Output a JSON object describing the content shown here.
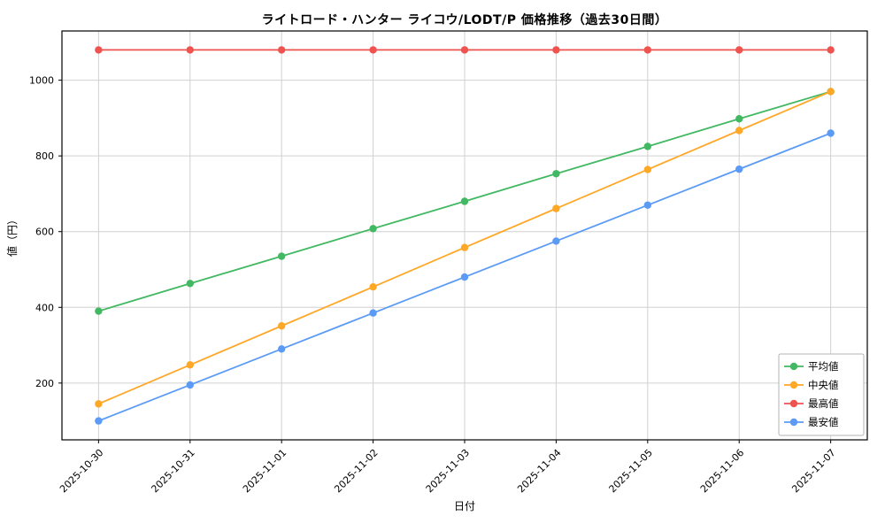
{
  "chart_data": {
    "type": "line",
    "title": "ライトロード・ハンター ライコウ/LODT/P 価格推移（過去30日間）",
    "xlabel": "日付",
    "ylabel": "値（円）",
    "x": [
      "2025-10-30",
      "2025-10-31",
      "2025-11-01",
      "2025-11-02",
      "2025-11-03",
      "2025-11-04",
      "2025-11-05",
      "2025-11-06",
      "2025-11-07"
    ],
    "series": [
      {
        "name": "平均値",
        "color": "#41b861",
        "values": [
          390,
          463,
          535,
          608,
          680,
          753,
          825,
          898,
          970
        ]
      },
      {
        "name": "中央値",
        "color": "#ffa726",
        "values": [
          145,
          248,
          351,
          454,
          558,
          661,
          764,
          867,
          970
        ]
      },
      {
        "name": "最高値",
        "color": "#ef5350",
        "values": [
          1080,
          1080,
          1080,
          1080,
          1080,
          1080,
          1080,
          1080,
          1080
        ]
      },
      {
        "name": "最安値",
        "color": "#5b9bf5",
        "values": [
          100,
          195,
          290,
          385,
          480,
          575,
          670,
          765,
          860
        ]
      }
    ],
    "ylim": [
      50,
      1130
    ],
    "yticks": [
      200,
      400,
      600,
      800,
      1000
    ],
    "grid": true,
    "grid_color": "#d0d0d0",
    "legend_position": "lower right",
    "marker": "o"
  }
}
